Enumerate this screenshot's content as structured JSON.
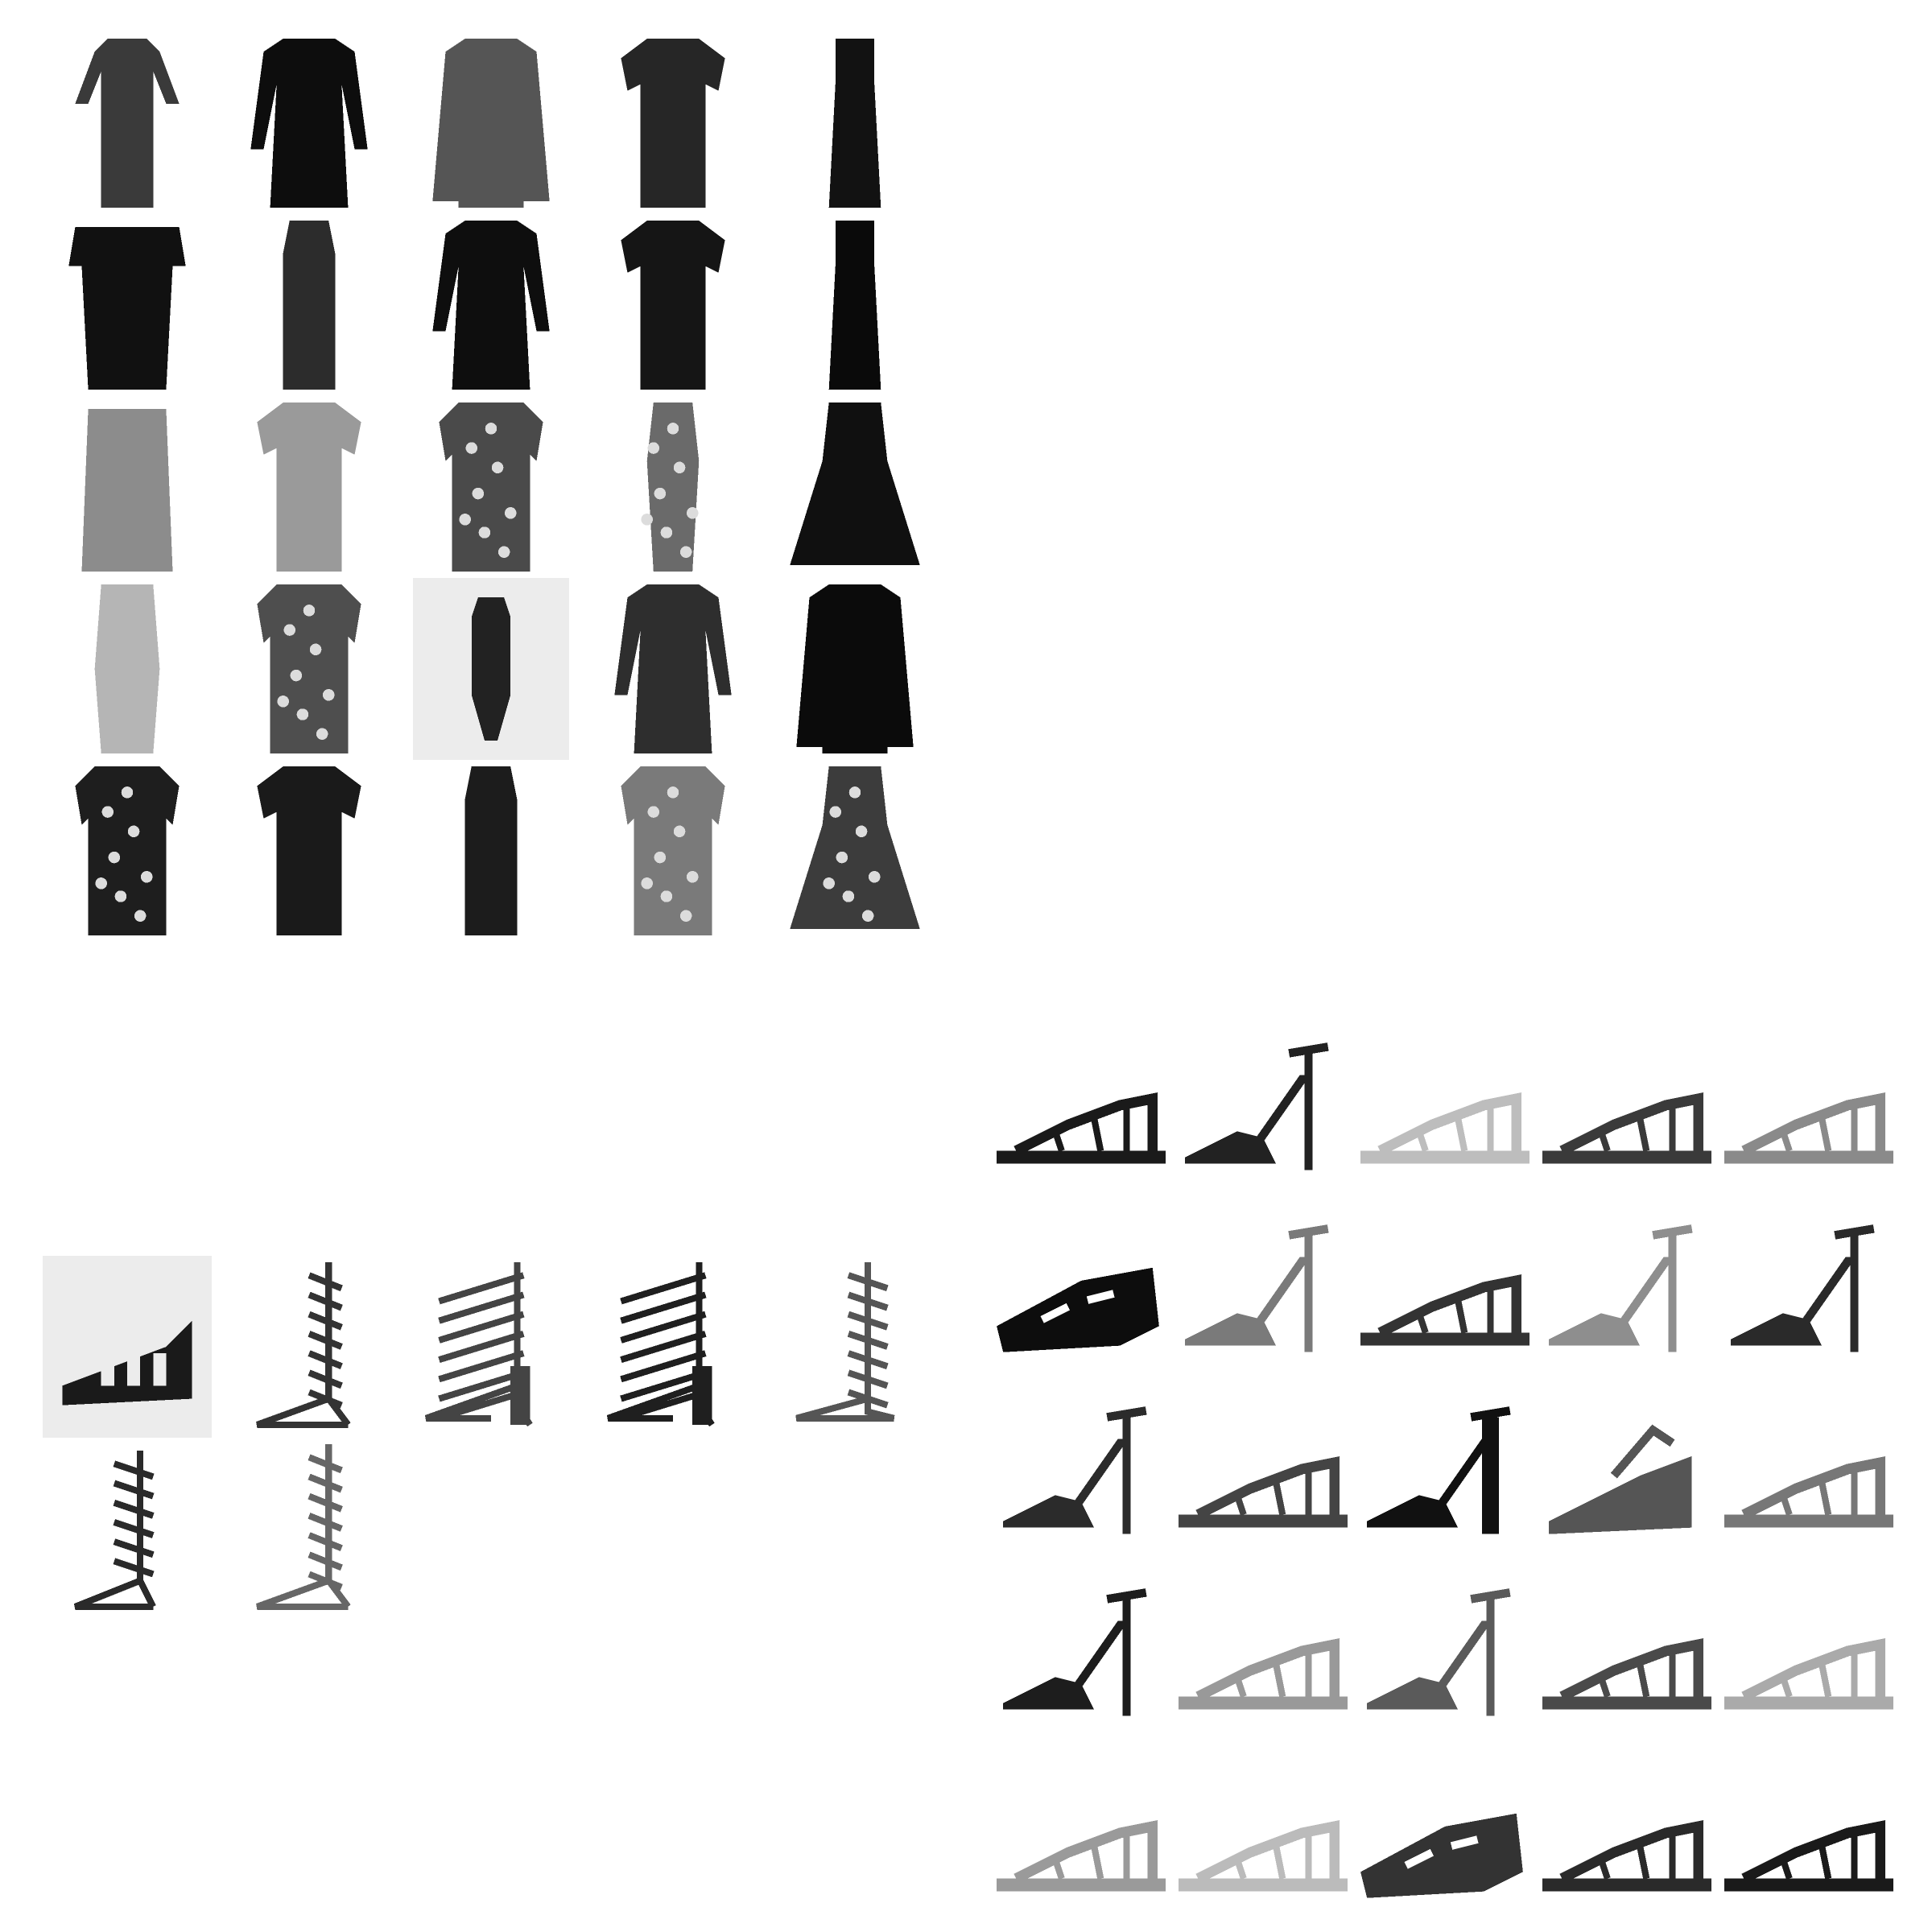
{
  "figure": {
    "panels": [
      {
        "name": "dresses",
        "rows": 5,
        "cols": 5,
        "items": [
          {
            "kind": "dress",
            "tone": "#3a3a3a",
            "style": "long-sleeve-long"
          },
          {
            "kind": "dress",
            "tone": "#0d0d0d",
            "style": "long-sleeve"
          },
          {
            "kind": "dress",
            "tone": "#555555",
            "style": "coat"
          },
          {
            "kind": "dress",
            "tone": "#262626",
            "style": "short-sleeve"
          },
          {
            "kind": "dress",
            "tone": "#121212",
            "style": "maxi"
          },
          {
            "kind": "dress",
            "tone": "#111111",
            "style": "off-shoulder"
          },
          {
            "kind": "dress",
            "tone": "#2c2c2c",
            "style": "sleeveless"
          },
          {
            "kind": "dress",
            "tone": "#0e0e0e",
            "style": "long-sleeve"
          },
          {
            "kind": "dress",
            "tone": "#151515",
            "style": "short-sleeve"
          },
          {
            "kind": "dress",
            "tone": "#0a0a0a",
            "style": "maxi"
          },
          {
            "kind": "dress",
            "tone": "#8c8c8c",
            "style": "slip"
          },
          {
            "kind": "dress",
            "tone": "#9a9a9a",
            "style": "short-sleeve"
          },
          {
            "kind": "dress",
            "tone": "#4a4a4a",
            "style": "patterned"
          },
          {
            "kind": "dress",
            "tone": "#6a6a6a",
            "style": "patterned-slim"
          },
          {
            "kind": "dress",
            "tone": "#101010",
            "style": "skater"
          },
          {
            "kind": "dress",
            "tone": "#b5b5b5",
            "style": "strappy"
          },
          {
            "kind": "dress",
            "tone": "#4e4e4e",
            "style": "patterned"
          },
          {
            "kind": "dress",
            "tone": "#222222",
            "style": "model-on-grey"
          },
          {
            "kind": "dress",
            "tone": "#2e2e2e",
            "style": "long-sleeve-flare"
          },
          {
            "kind": "dress",
            "tone": "#0b0b0b",
            "style": "coat"
          },
          {
            "kind": "dress",
            "tone": "#1e1e1e",
            "style": "patterned"
          },
          {
            "kind": "dress",
            "tone": "#1a1a1a",
            "style": "short-sleeve"
          },
          {
            "kind": "dress",
            "tone": "#1c1c1c",
            "style": "slim"
          },
          {
            "kind": "dress",
            "tone": "#7a7a7a",
            "style": "patterned-light"
          },
          {
            "kind": "dress",
            "tone": "#3c3c3c",
            "style": "patterned-skater"
          }
        ]
      },
      {
        "name": "boots",
        "rows": 2,
        "cols": 5,
        "items": [
          {
            "kind": "boot",
            "tone": "#1a1a1a",
            "style": "gladiator-on-grey"
          },
          {
            "kind": "boot",
            "tone": "#333333",
            "style": "lace-up-tall"
          },
          {
            "kind": "boot",
            "tone": "#444444",
            "style": "cage-heel"
          },
          {
            "kind": "boot",
            "tone": "#1f1f1f",
            "style": "cage-heel"
          },
          {
            "kind": "boot",
            "tone": "#555555",
            "style": "lace-up-flat"
          },
          {
            "kind": "boot",
            "tone": "#2a2a2a",
            "style": "lace-up-heel"
          },
          {
            "kind": "boot",
            "tone": "#666666",
            "style": "lace-up-tall"
          }
        ]
      },
      {
        "name": "sandals",
        "rows": 5,
        "cols": 5,
        "items": [
          {
            "kind": "sandal",
            "tone": "#1a1a1a",
            "style": "flat"
          },
          {
            "kind": "sandal",
            "tone": "#222222",
            "style": "heel"
          },
          {
            "kind": "sandal",
            "tone": "#bdbdbd",
            "style": "flat"
          },
          {
            "kind": "sandal",
            "tone": "#3a3a3a",
            "style": "flat"
          },
          {
            "kind": "sandal",
            "tone": "#8a8a8a",
            "style": "flat"
          },
          {
            "kind": "sandal",
            "tone": "#0d0d0d",
            "style": "chunky"
          },
          {
            "kind": "sandal",
            "tone": "#7a7a7a",
            "style": "heel"
          },
          {
            "kind": "sandal",
            "tone": "#333333",
            "style": "flat"
          },
          {
            "kind": "sandal",
            "tone": "#8e8e8e",
            "style": "heel"
          },
          {
            "kind": "sandal",
            "tone": "#2a2a2a",
            "style": "heel"
          },
          {
            "kind": "sandal",
            "tone": "#2b2b2b",
            "style": "heel"
          },
          {
            "kind": "sandal",
            "tone": "#444444",
            "style": "flat"
          },
          {
            "kind": "sandal",
            "tone": "#111111",
            "style": "block-heel"
          },
          {
            "kind": "sandal",
            "tone": "#555555",
            "style": "wedge"
          },
          {
            "kind": "sandal",
            "tone": "#777777",
            "style": "flat"
          },
          {
            "kind": "sandal",
            "tone": "#1d1d1d",
            "style": "heel"
          },
          {
            "kind": "sandal",
            "tone": "#999999",
            "style": "flat"
          },
          {
            "kind": "sandal",
            "tone": "#5a5a5a",
            "style": "heel"
          },
          {
            "kind": "sandal",
            "tone": "#4a4a4a",
            "style": "flat"
          },
          {
            "kind": "sandal",
            "tone": "#aaaaaa",
            "style": "flat"
          },
          {
            "kind": "sandal",
            "tone": "#9a9a9a",
            "style": "flat"
          },
          {
            "kind": "sandal",
            "tone": "#bbbbbb",
            "style": "flat"
          },
          {
            "kind": "sandal",
            "tone": "#333333",
            "style": "chunky"
          },
          {
            "kind": "sandal",
            "tone": "#2a2a2a",
            "style": "flat"
          },
          {
            "kind": "sandal",
            "tone": "#1a1a1a",
            "style": "flat"
          }
        ]
      }
    ]
  }
}
